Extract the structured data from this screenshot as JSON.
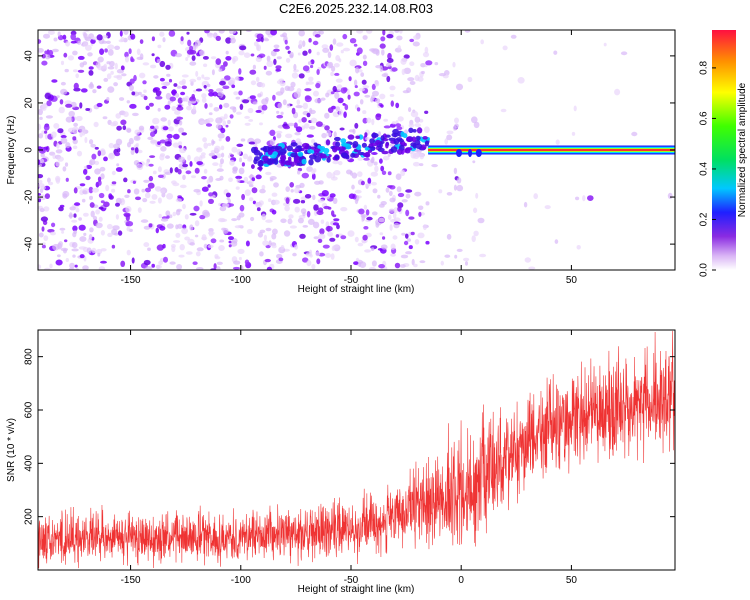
{
  "title": "C2E6.2025.232.14.08.R03",
  "chart_data": [
    {
      "type": "heatmap",
      "name": "spectrogram",
      "xlabel": "Height of straight line (km)",
      "ylabel": "Frequency (Hz)",
      "xlim": [
        -192,
        97
      ],
      "ylim": [
        -51,
        51
      ],
      "xticks": [
        -150,
        -100,
        -50,
        0,
        50
      ],
      "yticks": [
        -40,
        -20,
        0,
        20,
        40
      ],
      "colorbar": {
        "label": "Normalized spectral amplitude",
        "range": [
          0,
          0.95
        ],
        "ticks": [
          0.0,
          0.2,
          0.4,
          0.6,
          0.8
        ]
      },
      "features": {
        "noise_region_x": [
          -192,
          -10
        ],
        "drift_band": {
          "x": [
            -95,
            -15
          ],
          "freq_start": -4,
          "freq_end": 5
        },
        "tone_band": {
          "x": [
            -15,
            97
          ],
          "freq": 0,
          "amplitude": 0.9
        }
      }
    },
    {
      "type": "line",
      "name": "snr",
      "xlabel": "Height of straight line (km)",
      "ylabel": "SNR (10 * v/v)",
      "color": "#ef3333",
      "xlim": [
        -192,
        97
      ],
      "ylim": [
        0,
        900
      ],
      "xticks": [
        -150,
        -100,
        -50,
        0,
        50
      ],
      "yticks": [
        200,
        400,
        600,
        800
      ],
      "trend": [
        {
          "x": -192,
          "mean": 120,
          "spread": 110
        },
        {
          "x": -150,
          "mean": 120,
          "spread": 100
        },
        {
          "x": -100,
          "mean": 125,
          "spread": 100
        },
        {
          "x": -60,
          "mean": 145,
          "spread": 110
        },
        {
          "x": -30,
          "mean": 190,
          "spread": 130
        },
        {
          "x": -15,
          "mean": 250,
          "spread": 180
        },
        {
          "x": 0,
          "mean": 290,
          "spread": 230
        },
        {
          "x": 10,
          "mean": 340,
          "spread": 250
        },
        {
          "x": 20,
          "mean": 430,
          "spread": 200
        },
        {
          "x": 40,
          "mean": 540,
          "spread": 180
        },
        {
          "x": 60,
          "mean": 590,
          "spread": 190
        },
        {
          "x": 80,
          "mean": 620,
          "spread": 200
        },
        {
          "x": 97,
          "mean": 640,
          "spread": 220
        }
      ]
    }
  ]
}
